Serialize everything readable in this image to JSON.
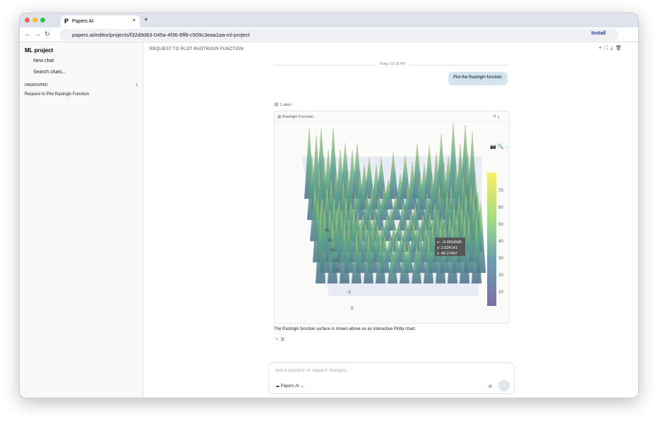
{
  "browser": {
    "tab_title": "Papers AI",
    "url": "papers.ai/editor/projects/f32d9d63-045a-4f36-8ff8-c509c3eaa1aa-ml-project",
    "install": "Install"
  },
  "sidebar": {
    "project": "ML project",
    "new_chat": "New chat",
    "search": "Search chats...",
    "group": "UNGROUPED",
    "group_count": "1",
    "chats": [
      "Request to Plot Rastrigin Function"
    ]
  },
  "header": {
    "title": "REQUEST TO PLOT RASTRIGIN FUNCTION"
  },
  "conversation": {
    "timestamp": "Today, 09:18 PM",
    "user_message": "Plot the Rastrigin function.",
    "steps": "1 step",
    "chart_card": {
      "title": "Rastrigin Function",
      "colorbar_ticks": [
        "70",
        "60",
        "50",
        "40",
        "30",
        "20",
        "10"
      ],
      "z_ticks": [
        "40",
        "30",
        "20",
        "10",
        "0"
      ],
      "x_ticks": [
        "−2",
        "0"
      ],
      "hover": [
        "x: −0.4654545",
        "y: 2.534141",
        "z: 46.17467"
      ]
    },
    "reply": "The Rastrigin function surface is shown above as an interactive Plotly chart."
  },
  "composer": {
    "placeholder": "Ask a question or request changes...",
    "model": "Papers AI"
  }
}
